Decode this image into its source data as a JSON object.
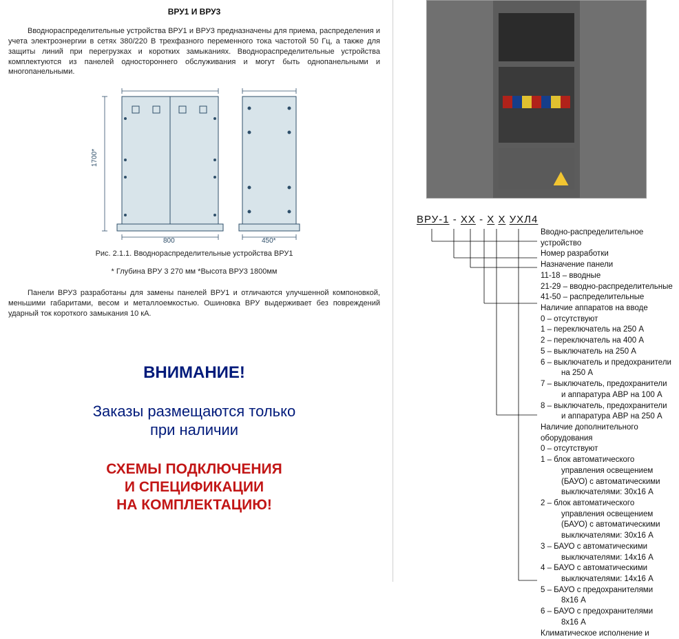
{
  "left": {
    "title": "ВРУ1 И ВРУ3",
    "para1": "Вводнораспределительные устройства ВРУ1 и ВРУ3 предназначены для приема, распределения и учета электроэнергии в сетях 380/220 В трехфазного переменного тока частотой 50 Гц, а также для защиты линий при перегрузках и коротких замыканиях. Вводнораспределительные устройства комплектуются из панелей одностороннего обслуживания и могут быть однопанельными и многопанельными.",
    "drawing": {
      "height_label": "1700*",
      "width_front": "800",
      "width_side": "450*",
      "stroke": "#2f4f6a",
      "fill": "#d8e4ea"
    },
    "caption": "Рис. 2.1.1. Вводнораспределительные устройства ВРУ1",
    "subcaption": "* Глубина ВРУ 3 270 мм *Высота ВРУ3 1800мм",
    "para2": "Панели ВРУ3 разработаны для замены панелей ВРУ1 и отличаются улучшенной компоновкой, меньшими габаритами, весом и металлоемкостью. Ошиновка ВРУ выдерживает без повреждений ударный ток короткого замыкания 10 кА.",
    "attention": "ВНИМАНИЕ!",
    "order_note_l1": "Заказы размещаются только",
    "order_note_l2": "при наличии",
    "red_l1": "СХЕМЫ ПОДКЛЮЧЕНИЯ",
    "red_l2": "И СПЕЦИФИКАЦИИ",
    "red_l3": "НА КОМПЛЕКТАЦИЮ!"
  },
  "right": {
    "code": {
      "p1": "ВРУ-1",
      "p2": "ХХ",
      "p3": "Х",
      "p4": "Х",
      "p5": "УХЛ4"
    },
    "decode": [
      {
        "t": "Вводно-распределительное"
      },
      {
        "t": "устройство"
      },
      {
        "t": "Номер разработки"
      },
      {
        "t": "Назначение панели"
      },
      {
        "t": "11-18 – вводные"
      },
      {
        "t": "21-29 – вводно-распределительные"
      },
      {
        "t": "41-50 – распределительные"
      },
      {
        "t": "Наличие аппаратов на вводе"
      },
      {
        "t": "0 – отсутствуют"
      },
      {
        "t": "1 – переключатель на 250 А"
      },
      {
        "t": "2 – переключатель на 400 А"
      },
      {
        "t": "5 – выключатель на 250 А"
      },
      {
        "t": "6 – выключатель и предохранители"
      },
      {
        "t": "на 250 А",
        "indent": true
      },
      {
        "t": "7 – выключатель, предохранители"
      },
      {
        "t": "и аппаратура АВР на 100 А",
        "indent": true
      },
      {
        "t": "8 – выключатель, предохранители"
      },
      {
        "t": "и аппаратура АВР на 250 А",
        "indent": true
      },
      {
        "t": "Наличие дополнительного"
      },
      {
        "t": "оборудования"
      },
      {
        "t": "0 – отсутствуют"
      },
      {
        "t": "1 – блок автоматического"
      },
      {
        "t": "управления освещением",
        "indent": true
      },
      {
        "t": "(БАУО) с автоматическими",
        "indent": true
      },
      {
        "t": "выключателями: 30х16 А",
        "indent": true
      },
      {
        "t": "2 – блок автоматического"
      },
      {
        "t": "управления освещением",
        "indent": true
      },
      {
        "t": "(БАУО) с автоматическими",
        "indent": true
      },
      {
        "t": "выключателями: 30х16 А",
        "indent": true
      },
      {
        "t": "3 – БАУО с автоматическими"
      },
      {
        "t": "выключателями: 14х16 А",
        "indent": true
      },
      {
        "t": "4 – БАУО с автоматическими"
      },
      {
        "t": "выключателями: 14х16 А",
        "indent": true
      },
      {
        "t": "5 – БАУО с предохранителями"
      },
      {
        "t": "8х16 А",
        "indent": true
      },
      {
        "t": "6 – БАУО с предохранителями"
      },
      {
        "t": "8х16 А",
        "indent": true
      },
      {
        "t": "Климатическое исполнение и"
      }
    ]
  },
  "colors": {
    "blue_text": "#001a7a",
    "red_text": "#c21616",
    "drawing_stroke": "#2f4f6a",
    "drawing_fill": "#d8e4ea"
  }
}
